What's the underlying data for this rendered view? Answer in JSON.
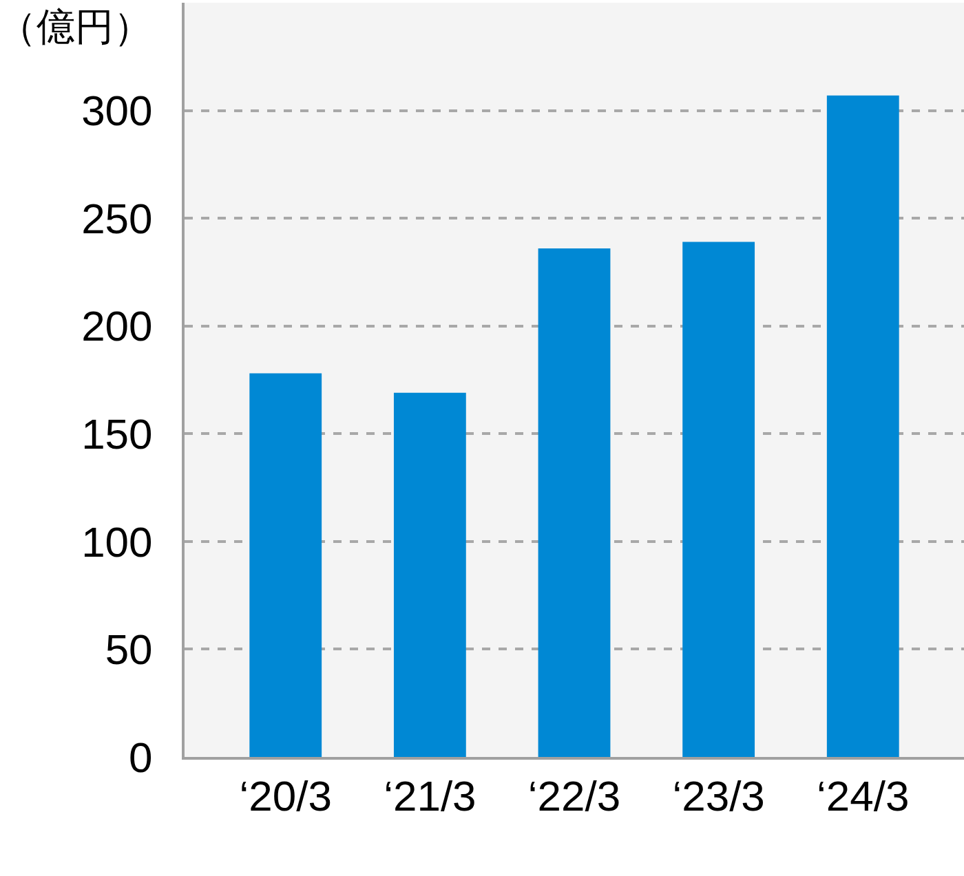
{
  "chart_data": {
    "type": "bar",
    "ylabel": "（億円）",
    "categories": [
      "‘20/3",
      "‘21/3",
      "‘22/3",
      "‘23/3",
      "‘24/3"
    ],
    "values": [
      178,
      169,
      236,
      239,
      307
    ],
    "color": "#0088d4",
    "ylim": [
      0,
      350
    ],
    "yticks": [
      0,
      50,
      100,
      150,
      200,
      250,
      300
    ],
    "grid": "y",
    "line_style": "dashed"
  }
}
